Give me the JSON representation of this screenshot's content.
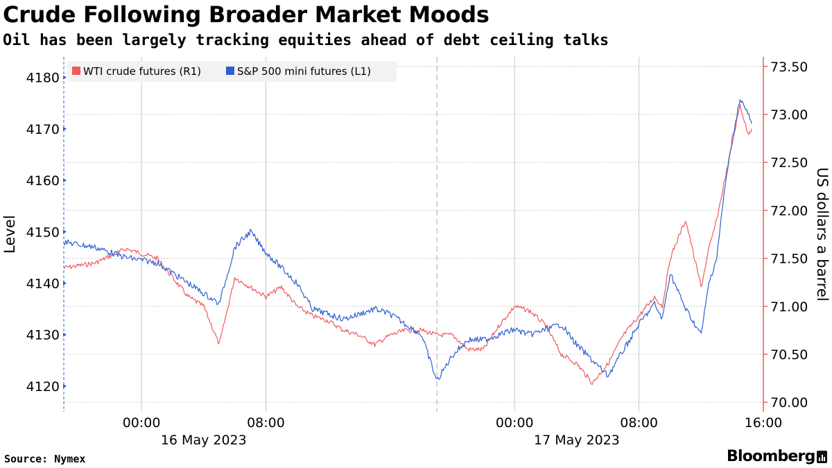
{
  "header": {
    "title": "Crude Following Broader Market Moods",
    "subtitle": "Oil has been largely tracking equities ahead of debt ceiling talks"
  },
  "footer": {
    "source": "Source: Nymex",
    "brand": "Bloomberg"
  },
  "colors": {
    "wti": "#ef5a5f",
    "spx": "#2f5fd0",
    "grid": "#c8c8c8",
    "right_axis": "#ef5a5f",
    "legend_bg": "#f2f2f2"
  },
  "icons": {
    "brand_mark": "bloomberg-terminal-icon"
  },
  "chart_data": {
    "type": "line",
    "title": "Crude Following Broader Market Moods",
    "subtitle": "Oil has been largely tracking equities ahead of debt ceiling talks",
    "x_axis": {
      "type": "time",
      "range": [
        "2023-05-15 19:00",
        "2023-05-17 16:00"
      ],
      "ticks": [
        {
          "t": "2023-05-16 00:00",
          "label": "00:00"
        },
        {
          "t": "2023-05-16 08:00",
          "label": "08:00"
        },
        {
          "t": "2023-05-17 00:00",
          "label": "00:00"
        },
        {
          "t": "2023-05-17 08:00",
          "label": "08:00"
        },
        {
          "t": "2023-05-17 16:00",
          "label": "16:00"
        }
      ],
      "date_labels": [
        {
          "t": "2023-05-16 04:00",
          "label": "16 May 2023"
        },
        {
          "t": "2023-05-17 04:00",
          "label": "17 May 2023"
        }
      ],
      "day_separator": "2023-05-16 19:00"
    },
    "y_left": {
      "label": "Level",
      "ylim": [
        4115,
        4184
      ],
      "ticks": [
        4120,
        4130,
        4140,
        4150,
        4160,
        4170,
        4180
      ]
    },
    "y_right": {
      "label": "US dollars a barrel",
      "ylim": [
        69.9,
        73.6
      ],
      "ticks": [
        "70.00",
        "70.50",
        "71.00",
        "71.50",
        "72.00",
        "72.50",
        "73.00",
        "73.50"
      ]
    },
    "grid": true,
    "legend": {
      "placement": "top-left",
      "entries": [
        "WTI crude futures (R1)",
        "S&P 500 mini futures  (L1)"
      ]
    },
    "series": [
      {
        "name": "WTI crude futures (R1)",
        "axis": "right",
        "x": [
          "2023-05-15 19:00",
          "2023-05-15 21:00",
          "2023-05-15 23:00",
          "2023-05-16 01:00",
          "2023-05-16 02:00",
          "2023-05-16 03:00",
          "2023-05-16 04:00",
          "2023-05-16 05:00",
          "2023-05-16 06:00",
          "2023-05-16 07:00",
          "2023-05-16 08:00",
          "2023-05-16 09:00",
          "2023-05-16 10:00",
          "2023-05-16 11:00",
          "2023-05-16 12:00",
          "2023-05-16 13:00",
          "2023-05-16 14:00",
          "2023-05-16 15:00",
          "2023-05-16 16:00",
          "2023-05-16 17:00",
          "2023-05-16 18:00",
          "2023-05-16 19:00",
          "2023-05-16 20:00",
          "2023-05-16 21:00",
          "2023-05-16 22:00",
          "2023-05-16 23:00",
          "2023-05-17 00:00",
          "2023-05-17 01:00",
          "2023-05-17 02:00",
          "2023-05-17 03:00",
          "2023-05-17 04:00",
          "2023-05-17 05:00",
          "2023-05-17 06:00",
          "2023-05-17 07:00",
          "2023-05-17 08:00",
          "2023-05-17 09:00",
          "2023-05-17 09:30",
          "2023-05-17 10:00",
          "2023-05-17 11:00",
          "2023-05-17 12:00",
          "2023-05-17 12:30",
          "2023-05-17 13:00",
          "2023-05-17 13:30",
          "2023-05-17 14:00",
          "2023-05-17 14:30",
          "2023-05-17 15:00",
          "2023-05-17 15:15"
        ],
        "values": [
          71.4,
          71.45,
          71.6,
          71.5,
          71.3,
          71.1,
          71.0,
          70.6,
          71.3,
          71.2,
          71.1,
          71.2,
          71.0,
          70.9,
          70.85,
          70.75,
          70.7,
          70.6,
          70.7,
          70.75,
          70.75,
          70.7,
          70.7,
          70.55,
          70.55,
          70.8,
          71.0,
          70.95,
          70.8,
          70.5,
          70.4,
          70.2,
          70.4,
          70.7,
          70.9,
          71.1,
          71.0,
          71.5,
          71.9,
          71.2,
          71.6,
          71.9,
          72.3,
          72.7,
          73.1,
          72.8,
          72.85
        ]
      },
      {
        "name": "S&P 500 mini futures  (L1)",
        "axis": "left",
        "x": [
          "2023-05-15 19:00",
          "2023-05-15 21:00",
          "2023-05-15 23:00",
          "2023-05-16 01:00",
          "2023-05-16 02:00",
          "2023-05-16 03:00",
          "2023-05-16 04:00",
          "2023-05-16 05:00",
          "2023-05-16 06:00",
          "2023-05-16 07:00",
          "2023-05-16 08:00",
          "2023-05-16 09:00",
          "2023-05-16 10:00",
          "2023-05-16 11:00",
          "2023-05-16 12:00",
          "2023-05-16 13:00",
          "2023-05-16 14:00",
          "2023-05-16 15:00",
          "2023-05-16 16:00",
          "2023-05-16 17:00",
          "2023-05-16 18:00",
          "2023-05-16 19:00",
          "2023-05-16 20:00",
          "2023-05-16 21:00",
          "2023-05-16 22:00",
          "2023-05-16 23:00",
          "2023-05-17 00:00",
          "2023-05-17 01:00",
          "2023-05-17 02:00",
          "2023-05-17 03:00",
          "2023-05-17 04:00",
          "2023-05-17 05:00",
          "2023-05-17 06:00",
          "2023-05-17 07:00",
          "2023-05-17 08:00",
          "2023-05-17 09:00",
          "2023-05-17 09:30",
          "2023-05-17 10:00",
          "2023-05-17 11:00",
          "2023-05-17 12:00",
          "2023-05-17 12:30",
          "2023-05-17 13:00",
          "2023-05-17 13:30",
          "2023-05-17 14:00",
          "2023-05-17 14:30",
          "2023-05-17 15:00",
          "2023-05-17 15:15"
        ],
        "values": [
          4148,
          4147,
          4145,
          4144,
          4142,
          4140,
          4138,
          4136,
          4147,
          4150,
          4146,
          4143,
          4140,
          4135,
          4134,
          4133,
          4134,
          4135,
          4134,
          4132,
          4130,
          4121,
          4126,
          4129,
          4129,
          4130,
          4131,
          4130,
          4131,
          4132,
          4128,
          4125,
          4122,
          4127,
          4132,
          4136,
          4133,
          4142,
          4135,
          4130,
          4140,
          4145,
          4158,
          4168,
          4176,
          4173,
          4171
        ]
      }
    ]
  }
}
